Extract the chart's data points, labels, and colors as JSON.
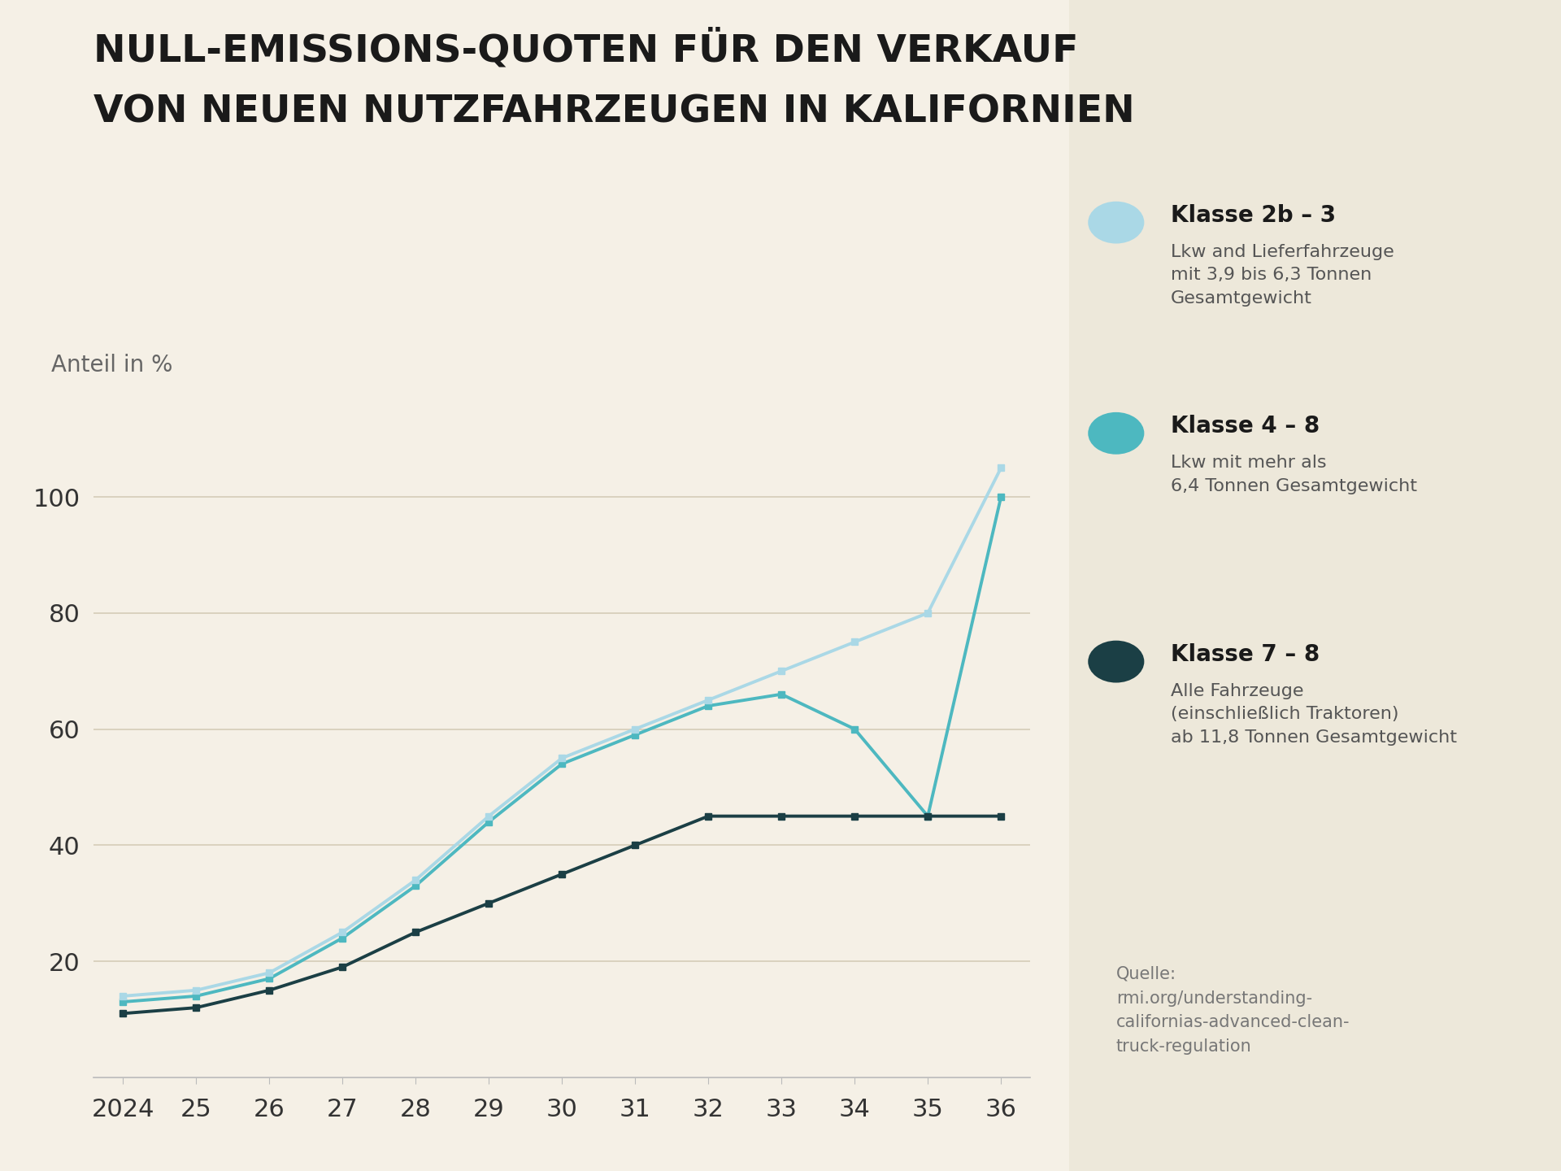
{
  "title_line1": "NULL-EMISSIONS-QUOTEN FÜR DEN VERKAUF",
  "title_line2": "VON NEUEN NUTZFAHRZEUGEN IN KALIFORNIEN",
  "ylabel": "Anteil in %",
  "bg_color": "#f5f0e6",
  "plot_bg_color": "#f5f0e6",
  "right_panel_bg": "#ede8da",
  "grid_color": "#d5cdb8",
  "years": [
    2024,
    2025,
    2026,
    2027,
    2028,
    2029,
    2030,
    2031,
    2032,
    2033,
    2034,
    2035,
    2036
  ],
  "klasse_2b3": [
    14,
    15,
    18,
    25,
    34,
    45,
    55,
    60,
    65,
    70,
    75,
    80,
    105
  ],
  "klasse_4_8": [
    13,
    14,
    17,
    24,
    33,
    44,
    54,
    59,
    64,
    66,
    60,
    45,
    100
  ],
  "klasse_7_8": [
    11,
    12,
    15,
    19,
    25,
    30,
    35,
    40,
    45,
    45,
    45,
    45,
    45
  ],
  "color_2b3": "#aad8e6",
  "color_4_8": "#4db8c0",
  "color_7_8": "#1b3f45",
  "legend_title_1": "Klasse 2b – 3",
  "legend_desc_1": "Lkw and Lieferfahrzeuge\nmit 3,9 bis 6,3 Tonnen\nGesamtgewicht",
  "legend_title_2": "Klasse 4 – 8",
  "legend_desc_2": "Lkw mit mehr als\n6,4 Tonnen Gesamtgewicht",
  "legend_title_3": "Klasse 7 – 8",
  "legend_desc_3": "Alle Fahrzeuge\n(einschließlich Traktoren)\nab 11,8 Tonnen Gesamtgewicht",
  "source_text": "Quelle:\nrmi.org/understanding-\ncalifornias-advanced-clean-\ntruck-regulation",
  "ylim": [
    0,
    115
  ],
  "yticks": [
    20,
    40,
    60,
    80,
    100
  ],
  "xtick_labels": [
    "2024",
    "25",
    "26",
    "27",
    "28",
    "29",
    "30",
    "31",
    "32",
    "33",
    "34",
    "35",
    "36"
  ],
  "title_fontsize": 34,
  "tick_fontsize": 22,
  "ylabel_fontsize": 20,
  "legend_title_fontsize": 20,
  "legend_desc_fontsize": 16,
  "source_fontsize": 15
}
